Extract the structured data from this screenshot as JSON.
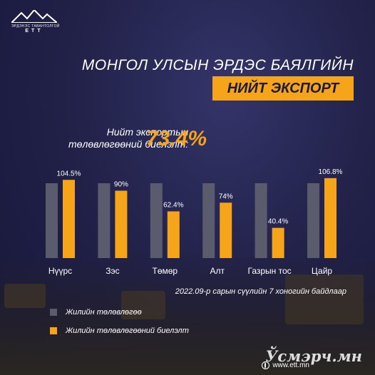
{
  "logo": {
    "subtitle": "ЭРДЭНЭС ТАВАНТОЛГОЙ",
    "brand": "ЕТТ",
    "accent_color": "#f6a51a"
  },
  "title": {
    "line1": "МОНГОЛ УЛСЫН ЭРДЭС БАЯЛГИЙН",
    "line2": "НИЙТ ЭКСПОРТ"
  },
  "kpi": {
    "label_line1": "Нийт экспортын",
    "label_line2": "төлөвлөгөөний биелэлт:",
    "value": "73.4%"
  },
  "chart_data": {
    "type": "bar",
    "categories": [
      "Нүүрс",
      "Зэс",
      "Төмөр",
      "Алт",
      "Газрын тос",
      "Цайр"
    ],
    "series": [
      {
        "name": "Жилийн төлөвлөгөө",
        "values": [
          100,
          100,
          100,
          100,
          100,
          100
        ],
        "color": "#5b5b6e"
      },
      {
        "name": "Жилийн төлөвлөгөөний биелэлт",
        "values": [
          104.5,
          90,
          62.4,
          74,
          40.4,
          106.8
        ],
        "color": "#f6a51a"
      }
    ],
    "data_labels": [
      "104.5%",
      "90%",
      "62.4%",
      "74%",
      "40.4%",
      "106.8%"
    ],
    "ylim": [
      0,
      110
    ],
    "grid": false,
    "legend_position": "bottom-left"
  },
  "footnote": "2022.09-р сарын сүүлийн 7 хоногийн байдлаар",
  "legend": [
    {
      "label": "Жилийн төлөвлөгөө",
      "color": "#5b5b6e"
    },
    {
      "label": "Жилийн төлөвлөгөөний биелэлт",
      "color": "#f6a51a"
    }
  ],
  "website": "www.ett.mn",
  "watermark": "Ўсмэрч.мн"
}
